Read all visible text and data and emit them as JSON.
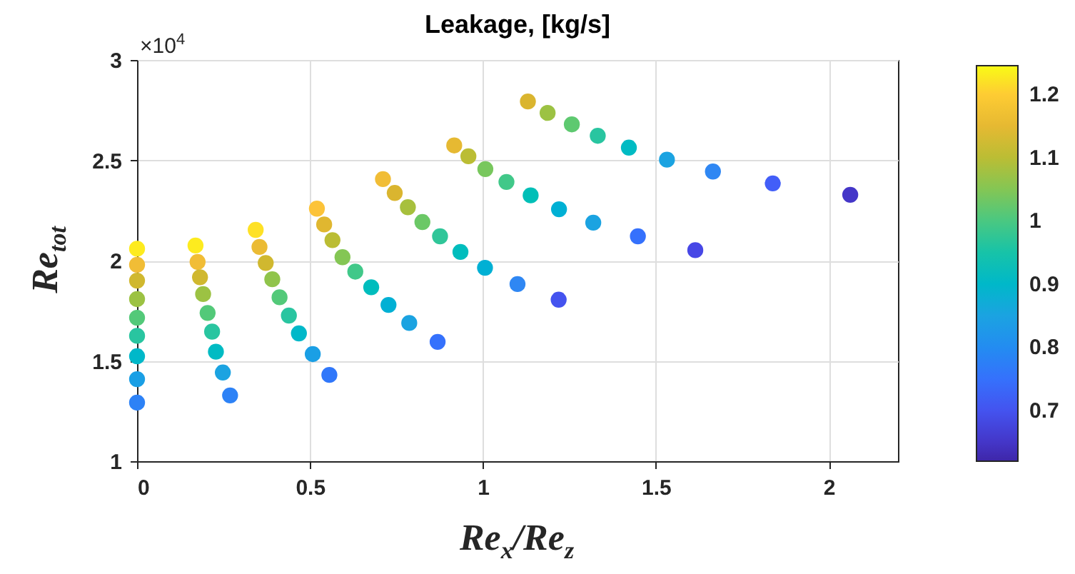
{
  "chart_data": {
    "type": "scatter",
    "title": "Leakage, [kg/s]",
    "xlabel": "Re$_{x}$/Re$_{z}$",
    "ylabel": "Re$_{tot}$",
    "annotations": [
      "×10$^{4}$"
    ],
    "x": [
      0,
      0,
      0,
      0,
      0,
      0,
      0,
      0,
      0,
      0.169,
      0.175,
      0.182,
      0.191,
      0.204,
      0.217,
      0.228,
      0.248,
      0.269,
      0.343,
      0.354,
      0.372,
      0.391,
      0.412,
      0.439,
      0.468,
      0.508,
      0.556,
      0.52,
      0.541,
      0.565,
      0.594,
      0.631,
      0.677,
      0.727,
      0.787,
      0.869,
      0.711,
      0.745,
      0.783,
      0.825,
      0.876,
      0.935,
      1.006,
      1.1,
      1.219,
      0.917,
      0.958,
      1.007,
      1.068,
      1.138,
      1.22,
      1.319,
      1.448,
      1.614,
      1.13,
      1.187,
      1.257,
      1.332,
      1.422,
      1.532,
      1.665,
      1.838,
      2.062
    ],
    "values": [
      2.059,
      1.979,
      1.9,
      1.808,
      1.715,
      1.625,
      1.523,
      1.409,
      1.292,
      2.075,
      1.993,
      1.917,
      1.833,
      1.739,
      1.646,
      1.546,
      1.442,
      1.328,
      2.153,
      2.068,
      1.988,
      1.907,
      1.817,
      1.726,
      1.637,
      1.534,
      1.43,
      2.259,
      2.18,
      2.102,
      2.017,
      1.945,
      1.867,
      1.779,
      1.689,
      1.595,
      2.406,
      2.337,
      2.266,
      2.192,
      2.121,
      2.043,
      1.964,
      1.883,
      1.805,
      2.574,
      2.52,
      2.456,
      2.392,
      2.325,
      2.256,
      2.189,
      2.121,
      2.052,
      2.793,
      2.736,
      2.679,
      2.622,
      2.563,
      2.503,
      2.444,
      2.385,
      2.328
    ],
    "cvalues": [
      1.23,
      1.17,
      1.12,
      1.07,
      1.01,
      0.96,
      0.9,
      0.84,
      0.78,
      1.23,
      1.17,
      1.12,
      1.07,
      1.01,
      0.96,
      0.91,
      0.85,
      0.78,
      1.22,
      1.16,
      1.12,
      1.06,
      1.01,
      0.96,
      0.9,
      0.84,
      0.76,
      1.19,
      1.14,
      1.1,
      1.05,
      0.99,
      0.92,
      0.88,
      0.85,
      0.75,
      1.17,
      1.13,
      1.08,
      1.03,
      0.97,
      0.92,
      0.88,
      0.79,
      0.7,
      1.15,
      1.1,
      1.04,
      0.99,
      0.93,
      0.88,
      0.85,
      0.75,
      0.68,
      1.13,
      1.07,
      1.02,
      0.96,
      0.91,
      0.85,
      0.79,
      0.72,
      0.65
    ],
    "xlim": [
      0,
      2.2
    ],
    "xticks": [
      0,
      0.5,
      1,
      1.5,
      2
    ],
    "ylim": [
      1,
      3
    ],
    "yticks": [
      1,
      1.5,
      2,
      2.5,
      3
    ],
    "clim": [
      0.62,
      1.245
    ],
    "cticks": [
      0.7,
      0.8,
      0.9,
      1,
      1.1,
      1.2
    ],
    "grid": true,
    "marker": "circle"
  }
}
